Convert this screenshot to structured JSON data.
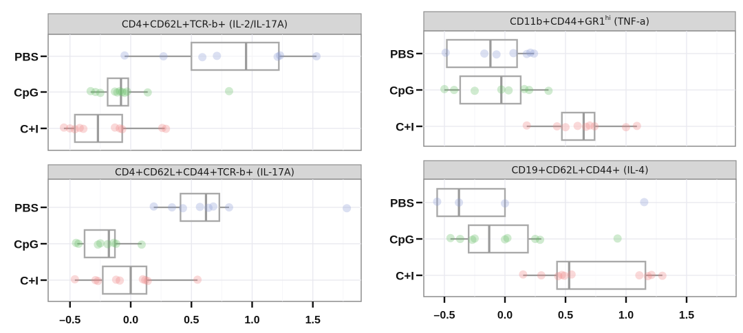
{
  "chart_data": [
    {
      "type": "boxplot",
      "orientation": "horizontal",
      "title": "CD4+CD62L+TCR-b+ (IL-2/IL-17A)",
      "categories": [
        "PBS",
        "CpG",
        "C+I"
      ],
      "xlim": [
        -0.65,
        1.9
      ],
      "xticks": [
        -0.5,
        0.0,
        0.5,
        1.0,
        1.5
      ],
      "xtick_labels": [
        "–0.5",
        "0.0",
        "0.5",
        "1.0",
        "1.5"
      ],
      "show_xaxis": false,
      "grid": true,
      "series": [
        {
          "name": "PBS",
          "color": "#8fa0d8",
          "box": {
            "q1": 0.5,
            "median": 0.95,
            "q3": 1.22,
            "whisker_low": -0.05,
            "whisker_high": 1.53
          },
          "points": [
            -0.05,
            0.27,
            0.59,
            0.71,
            1.21,
            1.23,
            1.53
          ]
        },
        {
          "name": "CpG",
          "color": "#6cc06c",
          "box": {
            "q1": -0.19,
            "median": -0.08,
            "q3": -0.02,
            "whisker_low": -0.33,
            "whisker_high": 0.14
          },
          "points": [
            -0.33,
            -0.29,
            -0.25,
            -0.13,
            -0.11,
            -0.09,
            -0.07,
            -0.05,
            -0.03,
            0.14,
            0.81
          ]
        },
        {
          "name": "C+I",
          "color": "#f08a8a",
          "box": {
            "q1": -0.46,
            "median": -0.27,
            "q3": -0.07,
            "whisker_low": -0.55,
            "whisker_high": 0.28
          },
          "points": [
            -0.55,
            -0.5,
            -0.46,
            -0.42,
            -0.39,
            -0.13,
            -0.09,
            -0.07,
            0.26,
            0.29
          ]
        }
      ]
    },
    {
      "type": "boxplot",
      "orientation": "horizontal",
      "title": "CD4+CD62L+CD44+TCR-b+ (IL-17A)",
      "categories": [
        "PBS",
        "CpG",
        "C+I"
      ],
      "xlim": [
        -0.65,
        1.9
      ],
      "xticks": [
        -0.5,
        0.0,
        0.5,
        1.0,
        1.5
      ],
      "xtick_labels": [
        "–0.5",
        "0.0",
        "0.5",
        "1.0",
        "1.5"
      ],
      "show_xaxis": true,
      "grid": true,
      "series": [
        {
          "name": "PBS",
          "color": "#8fa0d8",
          "box": {
            "q1": 0.41,
            "median": 0.62,
            "q3": 0.73,
            "whisker_low": 0.19,
            "whisker_high": 0.81
          },
          "points": [
            0.19,
            0.34,
            0.43,
            0.57,
            0.64,
            0.68,
            0.81,
            1.78
          ]
        },
        {
          "name": "CpG",
          "color": "#6cc06c",
          "box": {
            "q1": -0.38,
            "median": -0.18,
            "q3": -0.13,
            "whisker_low": -0.44,
            "whisker_high": 0.09
          },
          "points": [
            -0.45,
            -0.43,
            -0.27,
            -0.25,
            -0.19,
            -0.14,
            -0.12,
            0.09
          ]
        },
        {
          "name": "C+I",
          "color": "#f08a8a",
          "box": {
            "q1": -0.23,
            "median": 0.0,
            "q3": 0.13,
            "whisker_low": -0.46,
            "whisker_high": 0.55
          },
          "points": [
            -0.46,
            -0.29,
            -0.27,
            -0.12,
            -0.09,
            0.1,
            0.12,
            0.14,
            0.55
          ]
        }
      ]
    },
    {
      "type": "boxplot",
      "orientation": "horizontal",
      "title": "CD11b+CD44+GR1",
      "title_superscript": "hi",
      "title_suffix": " (TNF-a)",
      "categories": [
        "PBS",
        "CpG",
        "C+I"
      ],
      "xlim": [
        -0.68,
        1.9
      ],
      "xticks": [
        -0.5,
        0.0,
        0.5,
        1.0,
        1.5
      ],
      "xtick_labels": [
        "–0.5",
        "0.0",
        "0.5",
        "1.0",
        "1.5"
      ],
      "show_xaxis": false,
      "grid": true,
      "series": [
        {
          "name": "PBS",
          "color": "#8fa0d8",
          "box": {
            "q1": -0.48,
            "median": -0.12,
            "q3": 0.1,
            "whisker_low": -0.49,
            "whisker_high": 0.24
          },
          "points": [
            -0.49,
            -0.17,
            -0.07,
            0.07,
            0.18,
            0.21,
            0.24
          ]
        },
        {
          "name": "CpG",
          "color": "#6cc06c",
          "box": {
            "q1": -0.37,
            "median": -0.03,
            "q3": 0.13,
            "whisker_low": -0.5,
            "whisker_high": 0.36
          },
          "points": [
            -0.5,
            -0.42,
            -0.25,
            -0.03,
            0.03,
            0.16,
            0.2,
            0.36
          ]
        },
        {
          "name": "C+I",
          "color": "#f08a8a",
          "box": {
            "q1": 0.47,
            "median": 0.65,
            "q3": 0.74,
            "whisker_low": 0.18,
            "whisker_high": 1.09
          },
          "points": [
            0.18,
            0.43,
            0.5,
            0.6,
            0.67,
            0.7,
            0.74,
            1.0,
            1.09
          ]
        }
      ]
    },
    {
      "type": "boxplot",
      "orientation": "horizontal",
      "title": "CD19+CD62L+CD44+ (IL-4)",
      "categories": [
        "PBS",
        "CpG",
        "C+I"
      ],
      "xlim": [
        -0.68,
        1.9
      ],
      "xticks": [
        -0.5,
        0.0,
        0.5,
        1.0,
        1.5
      ],
      "xtick_labels": [
        "–0.5",
        "0.0",
        "0.5",
        "1.0",
        "1.5"
      ],
      "show_xaxis": true,
      "grid": true,
      "series": [
        {
          "name": "PBS",
          "color": "#8fa0d8",
          "box": {
            "q1": -0.56,
            "median": -0.38,
            "q3": 0.0,
            "whisker_low": -0.56,
            "whisker_high": 0.0
          },
          "points": [
            -0.56,
            -0.38,
            0.0,
            1.15
          ]
        },
        {
          "name": "CpG",
          "color": "#6cc06c",
          "box": {
            "q1": -0.3,
            "median": -0.13,
            "q3": 0.19,
            "whisker_low": -0.45,
            "whisker_high": 0.3
          },
          "points": [
            -0.45,
            -0.37,
            -0.27,
            -0.25,
            0.0,
            0.02,
            0.25,
            0.29,
            0.93
          ]
        },
        {
          "name": "C+I",
          "color": "#f08a8a",
          "box": {
            "q1": 0.43,
            "median": 0.53,
            "q3": 1.16,
            "whisker_low": 0.15,
            "whisker_high": 1.3
          },
          "points": [
            0.15,
            0.3,
            0.44,
            0.47,
            0.49,
            0.55,
            1.11,
            1.18,
            1.21,
            1.3
          ]
        }
      ]
    }
  ]
}
